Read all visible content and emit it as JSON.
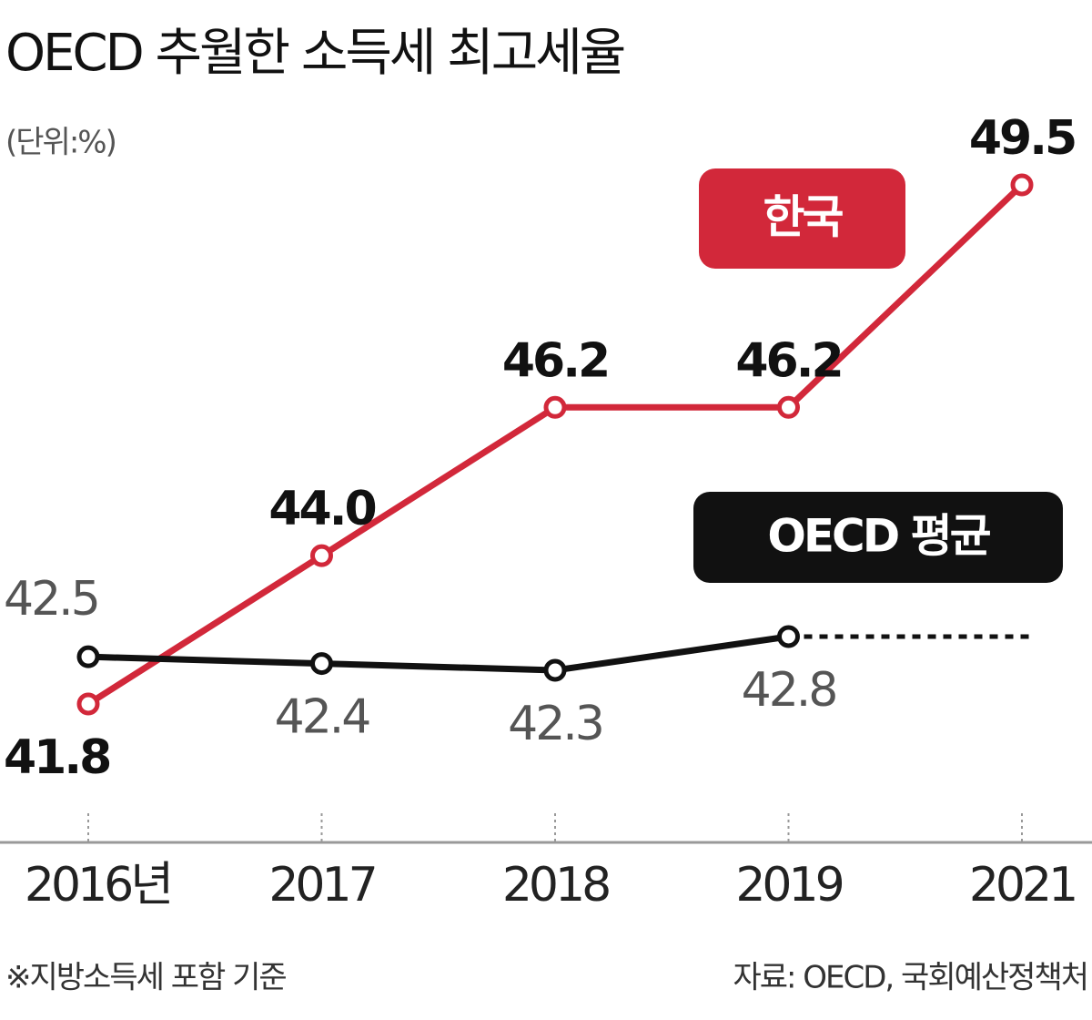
{
  "chart_data": {
    "type": "line",
    "title": "OECD 추월한 소득세 최고세율",
    "subtitle": "(단위:%)",
    "categories": [
      "2016년",
      "2017",
      "2018",
      "2019",
      "2021"
    ],
    "series": [
      {
        "name": "한국",
        "color": "#d2283a",
        "values": [
          41.8,
          44.0,
          46.2,
          46.2,
          49.5
        ],
        "value_labels": [
          "41.8",
          "44.0",
          "46.2",
          "46.2",
          "49.5"
        ]
      },
      {
        "name": "OECD 평균",
        "color": "#111111",
        "values": [
          42.5,
          42.4,
          42.3,
          42.8,
          null
        ]
      }
    ],
    "footnote": "※지방소득세 포함 기준",
    "source": "자료: OECD, 국회예산정책처"
  }
}
